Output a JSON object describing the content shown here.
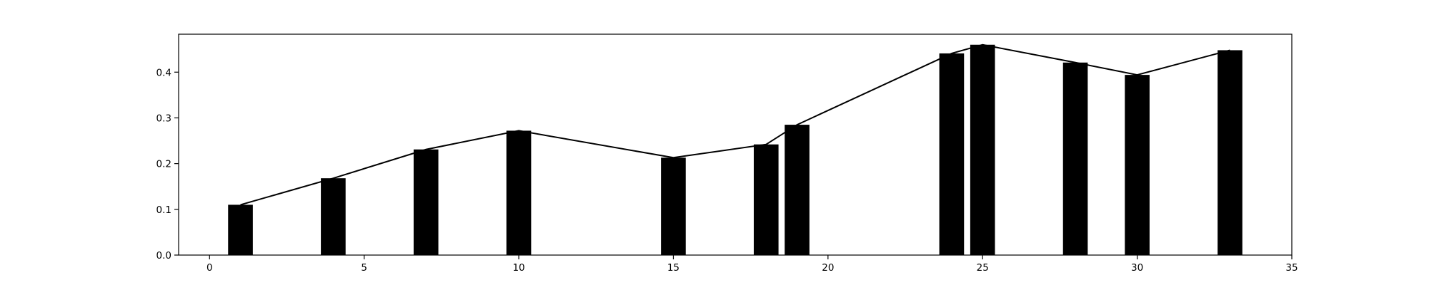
{
  "chart_data": {
    "type": "bar",
    "title": "",
    "xlabel": "",
    "ylabel": "",
    "x": [
      1,
      4,
      7,
      10,
      15,
      18,
      19,
      24,
      25,
      28,
      30,
      33
    ],
    "values": [
      0.11,
      0.168,
      0.231,
      0.272,
      0.213,
      0.242,
      0.285,
      0.441,
      0.46,
      0.421,
      0.394,
      0.448
    ],
    "line_overlay": true,
    "xlim": [
      -1,
      35
    ],
    "ylim": [
      0,
      0.483
    ],
    "xticks": [
      0,
      5,
      10,
      15,
      20,
      25,
      30,
      35
    ],
    "yticks": [
      0.0,
      0.1,
      0.2,
      0.3,
      0.4
    ],
    "xtick_labels": [
      "0",
      "5",
      "10",
      "15",
      "20",
      "25",
      "30",
      "35"
    ],
    "ytick_labels": [
      "0.0",
      "0.1",
      "0.2",
      "0.3",
      "0.4"
    ],
    "grid": false,
    "colors": {
      "bar": "#000000",
      "line": "#000000",
      "axes": "#000000"
    }
  }
}
